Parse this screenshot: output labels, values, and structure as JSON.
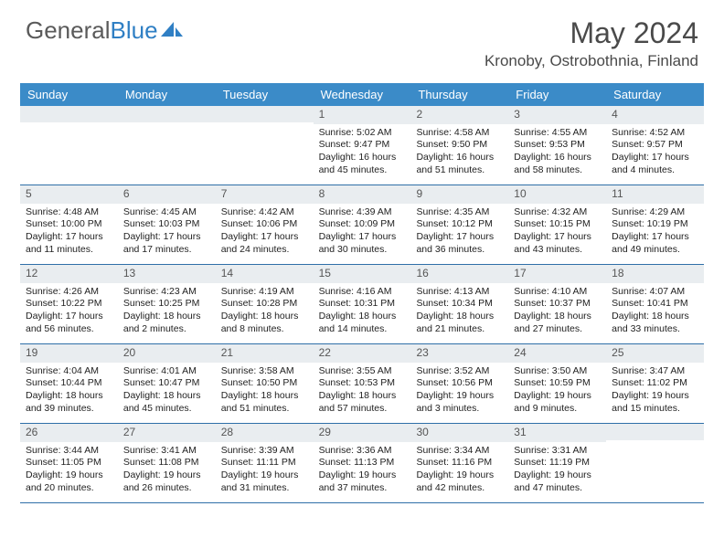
{
  "brand": {
    "part1": "General",
    "part2": "Blue"
  },
  "title": "May 2024",
  "location": "Kronoby, Ostrobothnia, Finland",
  "colors": {
    "header_bg": "#3b8bc8",
    "daynum_bg": "#e9edf0",
    "week_border": "#2f6fa8",
    "text": "#333333",
    "logo_gray": "#5a5a5a",
    "logo_blue": "#2f7fc4"
  },
  "day_names": [
    "Sunday",
    "Monday",
    "Tuesday",
    "Wednesday",
    "Thursday",
    "Friday",
    "Saturday"
  ],
  "weeks": [
    [
      {
        "empty": true
      },
      {
        "empty": true
      },
      {
        "empty": true
      },
      {
        "day": "1",
        "sunrise": "Sunrise: 5:02 AM",
        "sunset": "Sunset: 9:47 PM",
        "daylight": "Daylight: 16 hours and 45 minutes."
      },
      {
        "day": "2",
        "sunrise": "Sunrise: 4:58 AM",
        "sunset": "Sunset: 9:50 PM",
        "daylight": "Daylight: 16 hours and 51 minutes."
      },
      {
        "day": "3",
        "sunrise": "Sunrise: 4:55 AM",
        "sunset": "Sunset: 9:53 PM",
        "daylight": "Daylight: 16 hours and 58 minutes."
      },
      {
        "day": "4",
        "sunrise": "Sunrise: 4:52 AM",
        "sunset": "Sunset: 9:57 PM",
        "daylight": "Daylight: 17 hours and 4 minutes."
      }
    ],
    [
      {
        "day": "5",
        "sunrise": "Sunrise: 4:48 AM",
        "sunset": "Sunset: 10:00 PM",
        "daylight": "Daylight: 17 hours and 11 minutes."
      },
      {
        "day": "6",
        "sunrise": "Sunrise: 4:45 AM",
        "sunset": "Sunset: 10:03 PM",
        "daylight": "Daylight: 17 hours and 17 minutes."
      },
      {
        "day": "7",
        "sunrise": "Sunrise: 4:42 AM",
        "sunset": "Sunset: 10:06 PM",
        "daylight": "Daylight: 17 hours and 24 minutes."
      },
      {
        "day": "8",
        "sunrise": "Sunrise: 4:39 AM",
        "sunset": "Sunset: 10:09 PM",
        "daylight": "Daylight: 17 hours and 30 minutes."
      },
      {
        "day": "9",
        "sunrise": "Sunrise: 4:35 AM",
        "sunset": "Sunset: 10:12 PM",
        "daylight": "Daylight: 17 hours and 36 minutes."
      },
      {
        "day": "10",
        "sunrise": "Sunrise: 4:32 AM",
        "sunset": "Sunset: 10:15 PM",
        "daylight": "Daylight: 17 hours and 43 minutes."
      },
      {
        "day": "11",
        "sunrise": "Sunrise: 4:29 AM",
        "sunset": "Sunset: 10:19 PM",
        "daylight": "Daylight: 17 hours and 49 minutes."
      }
    ],
    [
      {
        "day": "12",
        "sunrise": "Sunrise: 4:26 AM",
        "sunset": "Sunset: 10:22 PM",
        "daylight": "Daylight: 17 hours and 56 minutes."
      },
      {
        "day": "13",
        "sunrise": "Sunrise: 4:23 AM",
        "sunset": "Sunset: 10:25 PM",
        "daylight": "Daylight: 18 hours and 2 minutes."
      },
      {
        "day": "14",
        "sunrise": "Sunrise: 4:19 AM",
        "sunset": "Sunset: 10:28 PM",
        "daylight": "Daylight: 18 hours and 8 minutes."
      },
      {
        "day": "15",
        "sunrise": "Sunrise: 4:16 AM",
        "sunset": "Sunset: 10:31 PM",
        "daylight": "Daylight: 18 hours and 14 minutes."
      },
      {
        "day": "16",
        "sunrise": "Sunrise: 4:13 AM",
        "sunset": "Sunset: 10:34 PM",
        "daylight": "Daylight: 18 hours and 21 minutes."
      },
      {
        "day": "17",
        "sunrise": "Sunrise: 4:10 AM",
        "sunset": "Sunset: 10:37 PM",
        "daylight": "Daylight: 18 hours and 27 minutes."
      },
      {
        "day": "18",
        "sunrise": "Sunrise: 4:07 AM",
        "sunset": "Sunset: 10:41 PM",
        "daylight": "Daylight: 18 hours and 33 minutes."
      }
    ],
    [
      {
        "day": "19",
        "sunrise": "Sunrise: 4:04 AM",
        "sunset": "Sunset: 10:44 PM",
        "daylight": "Daylight: 18 hours and 39 minutes."
      },
      {
        "day": "20",
        "sunrise": "Sunrise: 4:01 AM",
        "sunset": "Sunset: 10:47 PM",
        "daylight": "Daylight: 18 hours and 45 minutes."
      },
      {
        "day": "21",
        "sunrise": "Sunrise: 3:58 AM",
        "sunset": "Sunset: 10:50 PM",
        "daylight": "Daylight: 18 hours and 51 minutes."
      },
      {
        "day": "22",
        "sunrise": "Sunrise: 3:55 AM",
        "sunset": "Sunset: 10:53 PM",
        "daylight": "Daylight: 18 hours and 57 minutes."
      },
      {
        "day": "23",
        "sunrise": "Sunrise: 3:52 AM",
        "sunset": "Sunset: 10:56 PM",
        "daylight": "Daylight: 19 hours and 3 minutes."
      },
      {
        "day": "24",
        "sunrise": "Sunrise: 3:50 AM",
        "sunset": "Sunset: 10:59 PM",
        "daylight": "Daylight: 19 hours and 9 minutes."
      },
      {
        "day": "25",
        "sunrise": "Sunrise: 3:47 AM",
        "sunset": "Sunset: 11:02 PM",
        "daylight": "Daylight: 19 hours and 15 minutes."
      }
    ],
    [
      {
        "day": "26",
        "sunrise": "Sunrise: 3:44 AM",
        "sunset": "Sunset: 11:05 PM",
        "daylight": "Daylight: 19 hours and 20 minutes."
      },
      {
        "day": "27",
        "sunrise": "Sunrise: 3:41 AM",
        "sunset": "Sunset: 11:08 PM",
        "daylight": "Daylight: 19 hours and 26 minutes."
      },
      {
        "day": "28",
        "sunrise": "Sunrise: 3:39 AM",
        "sunset": "Sunset: 11:11 PM",
        "daylight": "Daylight: 19 hours and 31 minutes."
      },
      {
        "day": "29",
        "sunrise": "Sunrise: 3:36 AM",
        "sunset": "Sunset: 11:13 PM",
        "daylight": "Daylight: 19 hours and 37 minutes."
      },
      {
        "day": "30",
        "sunrise": "Sunrise: 3:34 AM",
        "sunset": "Sunset: 11:16 PM",
        "daylight": "Daylight: 19 hours and 42 minutes."
      },
      {
        "day": "31",
        "sunrise": "Sunrise: 3:31 AM",
        "sunset": "Sunset: 11:19 PM",
        "daylight": "Daylight: 19 hours and 47 minutes."
      },
      {
        "empty": true
      }
    ]
  ]
}
